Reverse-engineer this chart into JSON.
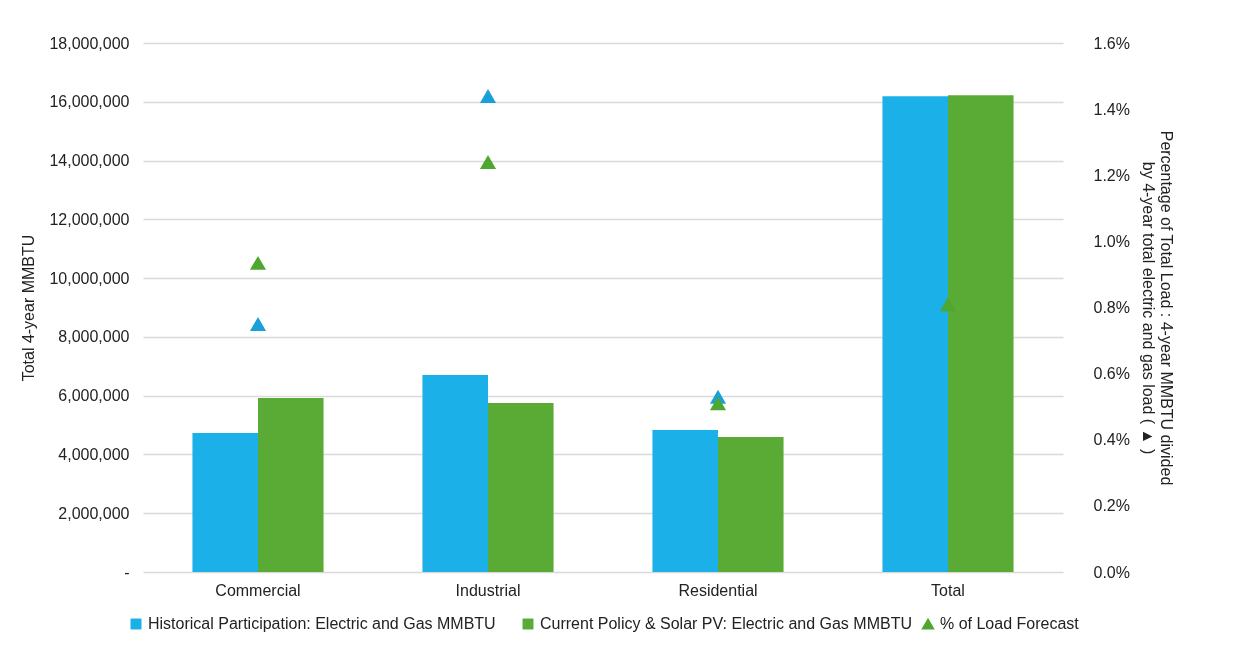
{
  "chart_data": {
    "type": "bar",
    "ylabel": "Total 4-year MMBTU",
    "y2label": "Percentage of Total Load : 4-year MMBTU divided by 4-year total electric and gas load ( ▲ )",
    "categories": [
      "Commercial",
      "Industrial",
      "Residential",
      "Total"
    ],
    "series": [
      {
        "name": "Historical Participation: Electric and Gas MMBTU",
        "type": "bar",
        "color": "#1bb0e8",
        "values": [
          4730000,
          6700000,
          4830000,
          16190000
        ]
      },
      {
        "name": "Current Policy & Solar PV: Electric and Gas MMBTU",
        "type": "bar",
        "color": "#5aab35",
        "values": [
          5920000,
          5750000,
          4590000,
          16220000
        ]
      },
      {
        "type": "scatter",
        "axis": "y2",
        "marker": "triangle",
        "color": "#1a9fd8",
        "values": [
          0.75,
          1.44,
          0.53,
          null
        ]
      },
      {
        "name": "% of Load Forecast",
        "type": "scatter",
        "axis": "y2",
        "marker": "triangle",
        "color": "#4ea72e",
        "values": [
          0.935,
          1.24,
          0.51,
          0.81
        ]
      }
    ],
    "ylim": [
      0,
      18000000
    ],
    "yticks": [
      {
        "value": 0,
        "label": "-"
      },
      {
        "value": 2000000,
        "label": "2,000,000"
      },
      {
        "value": 4000000,
        "label": "4,000,000"
      },
      {
        "value": 6000000,
        "label": "6,000,000"
      },
      {
        "value": 8000000,
        "label": "8,000,000"
      },
      {
        "value": 10000000,
        "label": "10,000,000"
      },
      {
        "value": 12000000,
        "label": "12,000,000"
      },
      {
        "value": 14000000,
        "label": "14,000,000"
      },
      {
        "value": 16000000,
        "label": "16,000,000"
      },
      {
        "value": 18000000,
        "label": "18,000,000"
      }
    ],
    "y2lim": [
      0,
      1.6
    ],
    "y2ticks": [
      {
        "value": 0,
        "label": "0.0%"
      },
      {
        "value": 0.2,
        "label": "0.2%"
      },
      {
        "value": 0.4,
        "label": "0.4%"
      },
      {
        "value": 0.6,
        "label": "0.6%"
      },
      {
        "value": 0.8,
        "label": "0.8%"
      },
      {
        "value": 1.0,
        "label": "1.0%"
      },
      {
        "value": 1.2,
        "label": "1.2%"
      },
      {
        "value": 1.4,
        "label": "1.4%"
      },
      {
        "value": 1.6,
        "label": "1.6%"
      }
    ],
    "grid": "y",
    "legend": "bottom"
  }
}
